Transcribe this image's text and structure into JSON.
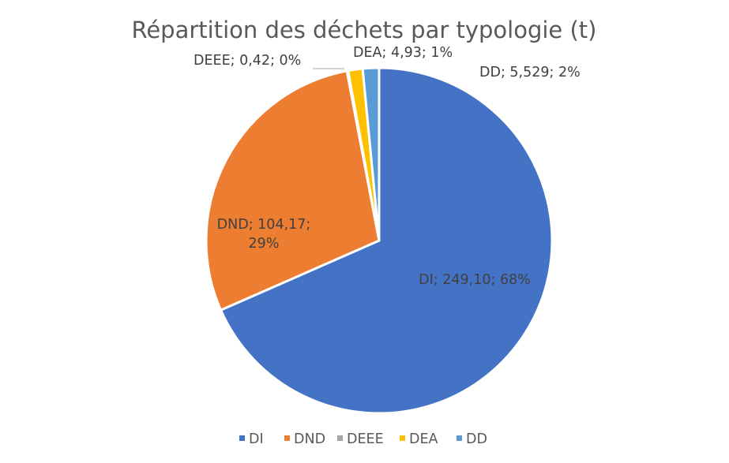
{
  "chart_data": {
    "type": "pie",
    "title": "Répartition des déchets par typologie (t)",
    "slices": [
      {
        "name": "DI",
        "value": 249.1,
        "percent": 68,
        "color": "#4472C4",
        "label_lines": [
          "DI; 249,10; 68%"
        ]
      },
      {
        "name": "DND",
        "value": 104.17,
        "percent": 29,
        "color": "#ED7D31",
        "label_lines": [
          "DND; 104,17;",
          "29%"
        ]
      },
      {
        "name": "DEEE",
        "value": 0.42,
        "percent": 0,
        "color": "#A5A5A5",
        "label_lines": [
          "DEEE; 0,42; 0%"
        ]
      },
      {
        "name": "DEA",
        "value": 4.93,
        "percent": 1,
        "color": "#FFC000",
        "label_lines": [
          "DEA; 4,93; 1%"
        ]
      },
      {
        "name": "DD",
        "value": 5.529,
        "percent": 2,
        "color": "#5B9BD5",
        "label_lines": [
          "DD; 5,529; 2%"
        ]
      }
    ],
    "legend": {
      "position": "bottom",
      "entries": [
        "DI",
        "DND",
        "DEEE",
        "DEA",
        "DD"
      ]
    }
  }
}
